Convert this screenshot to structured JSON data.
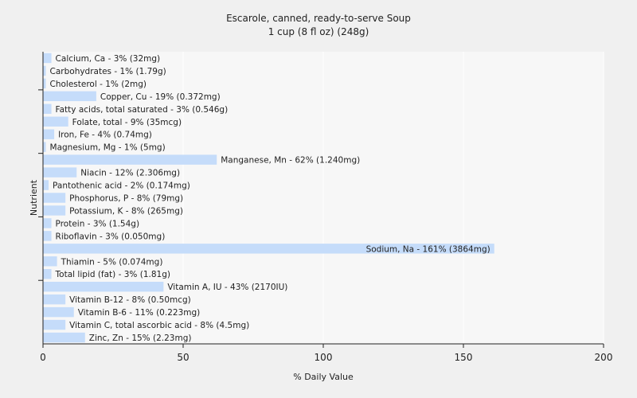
{
  "chart_data": {
    "type": "bar",
    "orientation": "horizontal",
    "title": "Escarole, canned, ready-to-serve Soup",
    "subtitle": "1 cup (8 fl oz) (248g)",
    "xlabel": "% Daily Value",
    "ylabel": "Nutrient",
    "xlim": [
      0,
      200
    ],
    "xticks": [
      0,
      50,
      100,
      150,
      200
    ],
    "grid": true,
    "bar_color": "#c5dcfa",
    "categories": [
      "Calcium, Ca - 3% (32mg)",
      "Carbohydrates - 1% (1.79g)",
      "Cholesterol - 1% (2mg)",
      "Copper, Cu - 19% (0.372mg)",
      "Fatty acids, total saturated - 3% (0.546g)",
      "Folate, total - 9% (35mcg)",
      "Iron, Fe - 4% (0.74mg)",
      "Magnesium, Mg - 1% (5mg)",
      "Manganese, Mn - 62% (1.240mg)",
      "Niacin - 12% (2.306mg)",
      "Pantothenic acid - 2% (0.174mg)",
      "Phosphorus, P - 8% (79mg)",
      "Potassium, K - 8% (265mg)",
      "Protein - 3% (1.54g)",
      "Riboflavin - 3% (0.050mg)",
      "Sodium, Na - 161% (3864mg)",
      "Thiamin - 5% (0.074mg)",
      "Total lipid (fat) - 3% (1.81g)",
      "Vitamin A, IU - 43% (2170IU)",
      "Vitamin B-12 - 8% (0.50mcg)",
      "Vitamin B-6 - 11% (0.223mg)",
      "Vitamin C, total ascorbic acid - 8% (4.5mg)",
      "Zinc, Zn - 15% (2.23mg)"
    ],
    "values": [
      3,
      1,
      1,
      19,
      3,
      9,
      4,
      1,
      62,
      12,
      2,
      8,
      8,
      3,
      3,
      161,
      5,
      3,
      43,
      8,
      11,
      8,
      15
    ]
  }
}
